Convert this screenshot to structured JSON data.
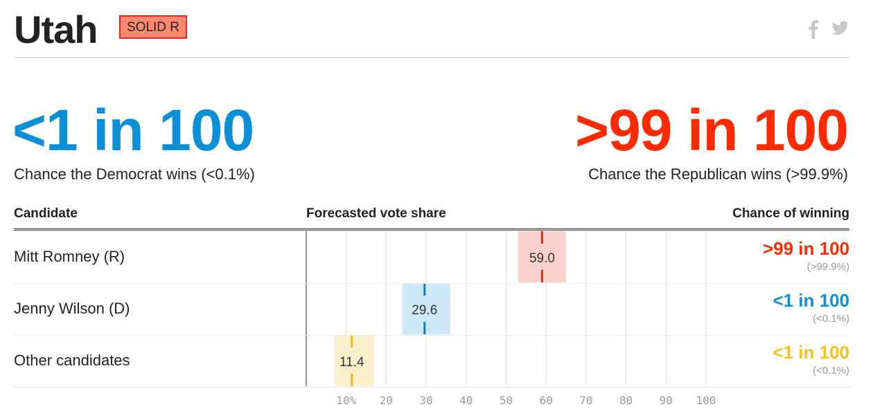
{
  "header": {
    "state": "Utah",
    "rating": "SOLID R"
  },
  "share_icons": {
    "facebook": "f",
    "twitter": "twitter-bird"
  },
  "summary": {
    "democrat": {
      "odds": "<1 in 100",
      "caption": "Chance the Democrat wins (<0.1%)"
    },
    "republican": {
      "odds": ">99 in 100",
      "caption": "Chance the Republican wins (>99.9%)"
    }
  },
  "table": {
    "headers": {
      "candidate": "Candidate",
      "vote_share": "Forecasted vote share",
      "chance": "Chance of winning"
    },
    "rows": [
      {
        "name": "Mitt Romney (R)",
        "chance": ">99 in 100",
        "chance_pct": "(>99.9%)"
      },
      {
        "name": "Jenny Wilson (D)",
        "chance": "<1 in 100",
        "chance_pct": "(<0.1%)"
      },
      {
        "name": "Other candidates",
        "chance": "<1 in 100",
        "chance_pct": "(<0.1%)"
      }
    ]
  },
  "colors": {
    "republican": "#ff2a00",
    "democrat": "#0b8fd6",
    "other": "#f5c01a",
    "rating_badge": "#ff8870"
  },
  "chart_data": {
    "type": "bar",
    "categories": [
      "Mitt Romney (R)",
      "Jenny Wilson (D)",
      "Other candidates"
    ],
    "values": [
      59.0,
      29.6,
      11.4
    ],
    "value_labels": [
      "59.0",
      "29.6",
      "11.4"
    ],
    "ranges": [
      [
        53,
        65
      ],
      [
        24,
        36
      ],
      [
        7,
        17
      ]
    ],
    "xlim": [
      0,
      100
    ],
    "ticks": [
      10,
      20,
      30,
      40,
      50,
      60,
      70,
      80,
      90,
      100
    ],
    "tick_labels": [
      "10%",
      "20",
      "30",
      "40",
      "50",
      "60",
      "70",
      "80",
      "90",
      "100"
    ],
    "range_colors": [
      "#fcd0cb",
      "#cde8f7",
      "#fcf0cc"
    ],
    "marker_colors": [
      "#d92a18",
      "#0b7fc4",
      "#f2b61a"
    ],
    "grid": true
  }
}
